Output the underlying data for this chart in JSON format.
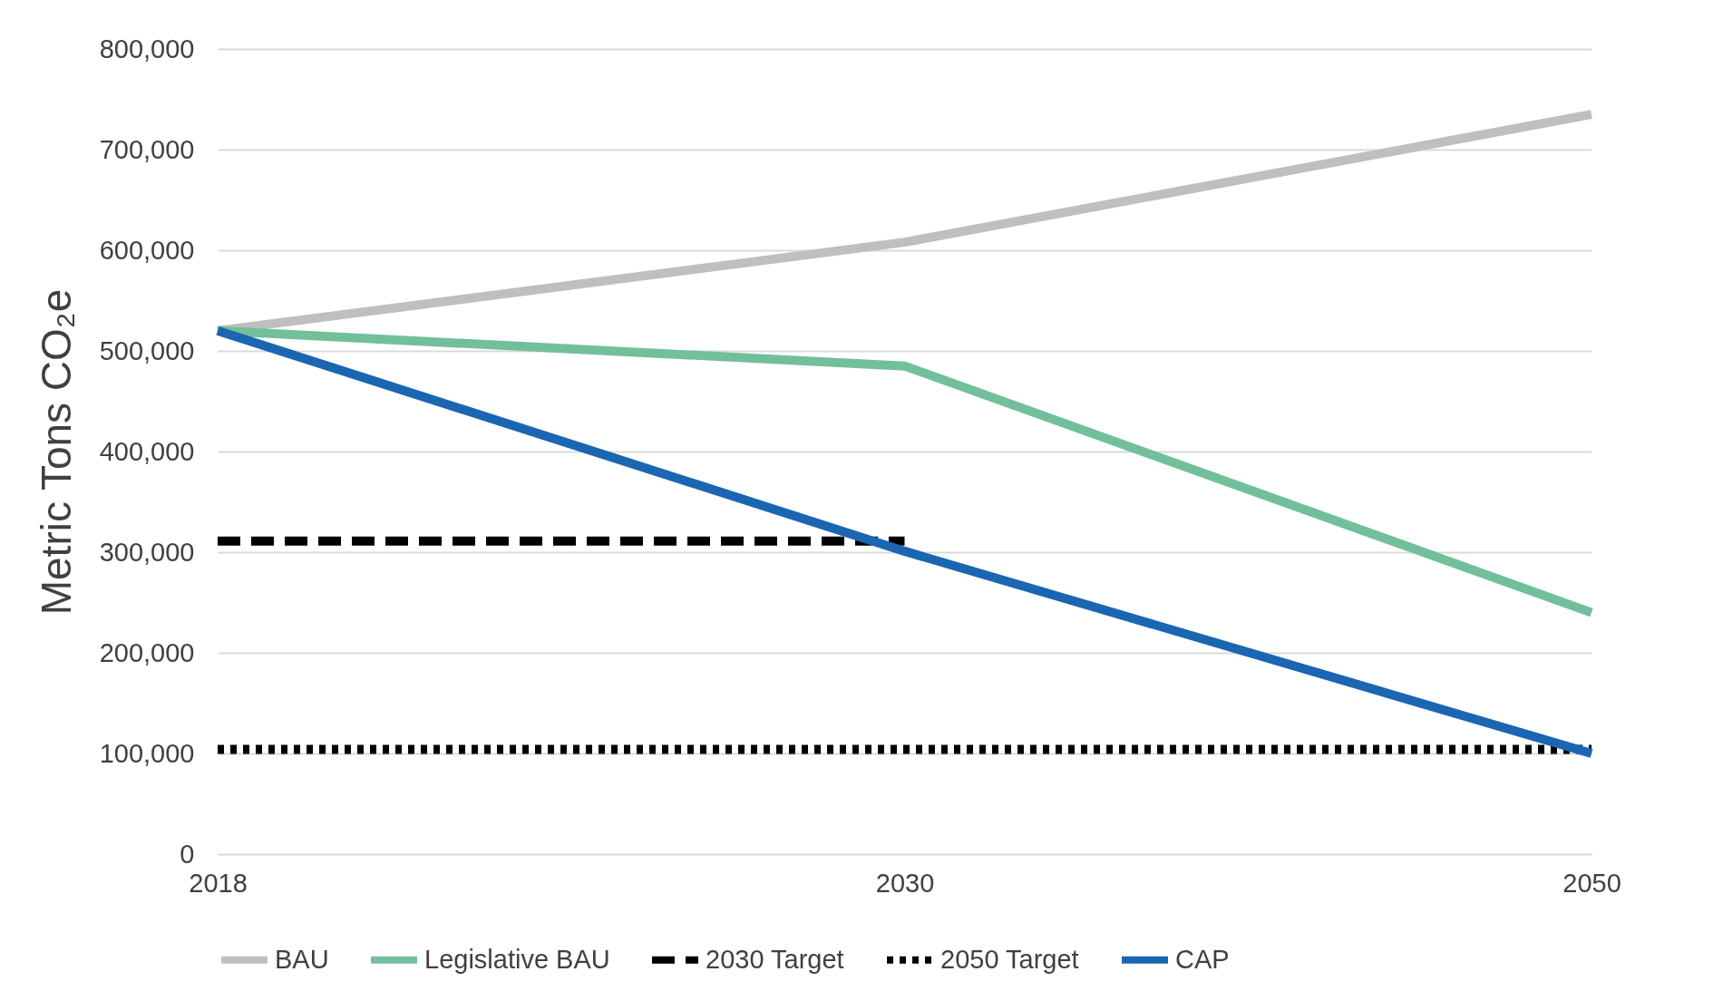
{
  "chart_data": {
    "type": "line",
    "ylabel": "Metric Tons CO₂e",
    "categories": [
      "2018",
      "2030",
      "2050"
    ],
    "series": [
      {
        "name": "BAU",
        "color": "#bfbfbf",
        "line_style": "solid",
        "values": [
          520000,
          608000,
          735000
        ]
      },
      {
        "name": "Legislative BAU",
        "color": "#72bf9b",
        "line_style": "solid",
        "values": [
          520000,
          485000,
          240000
        ]
      },
      {
        "name": "2030 Target",
        "color": "#000000",
        "line_style": "dashed",
        "values": [
          311000,
          311000,
          null
        ]
      },
      {
        "name": "2050 Target",
        "color": "#000000",
        "line_style": "dotted",
        "values": [
          104000,
          104000,
          104000
        ]
      },
      {
        "name": "CAP",
        "color": "#1b66b1",
        "line_style": "solid",
        "values": [
          520000,
          301000,
          100000
        ]
      }
    ],
    "ylim": [
      0,
      800000
    ],
    "yticks": [
      0,
      {
        "value": 100000,
        "label": "100,000"
      },
      {
        "value": 200000,
        "label": "200,000"
      },
      {
        "value": 300000,
        "label": "300,000"
      },
      {
        "value": 400000,
        "label": "400,000"
      },
      {
        "value": 500000,
        "label": "500,000"
      },
      {
        "value": 600000,
        "label": "600,000"
      },
      {
        "value": 700000,
        "label": "700,000"
      },
      {
        "value": 800000,
        "label": "800,000"
      }
    ],
    "grid": "y",
    "legend": "bottom"
  }
}
